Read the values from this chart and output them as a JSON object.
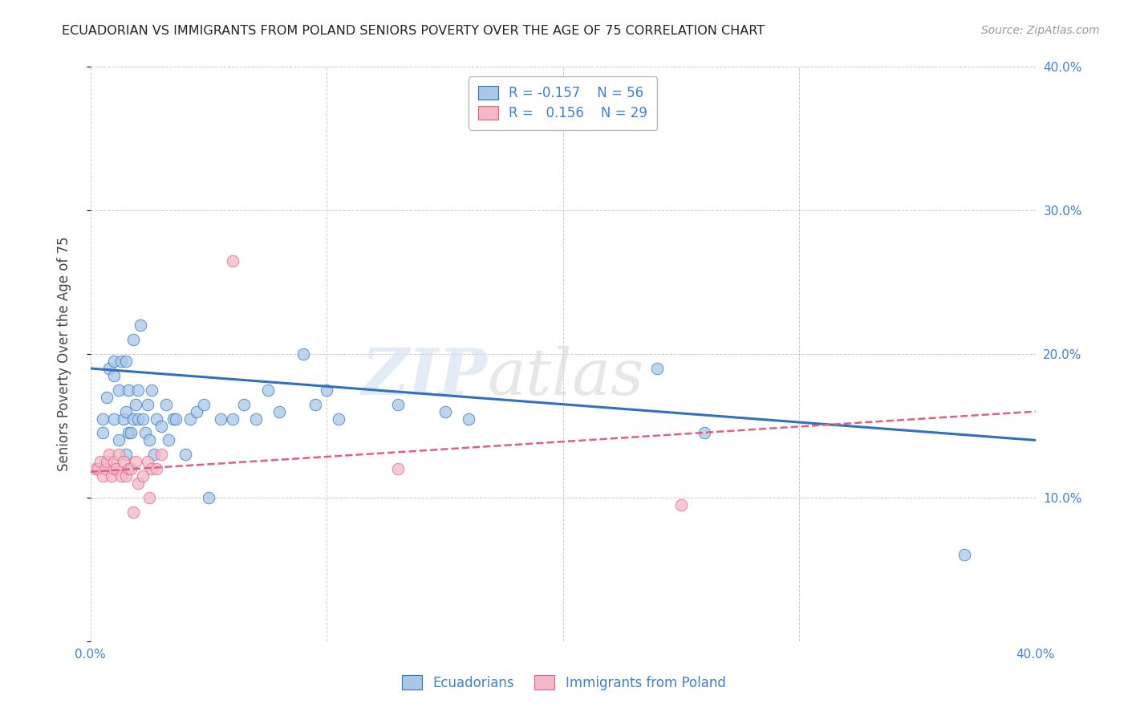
{
  "title": "ECUADORIAN VS IMMIGRANTS FROM POLAND SENIORS POVERTY OVER THE AGE OF 75 CORRELATION CHART",
  "source": "Source: ZipAtlas.com",
  "ylabel": "Seniors Poverty Over the Age of 75",
  "xlim": [
    0.0,
    0.4
  ],
  "ylim": [
    0.0,
    0.4
  ],
  "xticks": [
    0.0,
    0.1,
    0.2,
    0.3,
    0.4
  ],
  "yticks": [
    0.0,
    0.1,
    0.2,
    0.3,
    0.4
  ],
  "xticklabels": [
    "0.0%",
    "",
    "",
    "",
    "40.0%"
  ],
  "right_yticklabels": [
    "10.0%",
    "20.0%",
    "30.0%",
    "40.0%"
  ],
  "right_yticks": [
    0.1,
    0.2,
    0.3,
    0.4
  ],
  "blue_color": "#a8c8e8",
  "pink_color": "#f5b8c8",
  "blue_line_color": "#3070c0",
  "pink_line_color": "#e06080",
  "title_color": "#222222",
  "source_color": "#999999",
  "label_color": "#4080d0",
  "grid_color": "#cccccc",
  "legend_R_blue": "-0.157",
  "legend_N_blue": "56",
  "legend_R_pink": "0.156",
  "legend_N_pink": "29",
  "ecuadorians_x": [
    0.005,
    0.005,
    0.007,
    0.008,
    0.01,
    0.01,
    0.01,
    0.012,
    0.012,
    0.013,
    0.014,
    0.015,
    0.015,
    0.015,
    0.016,
    0.016,
    0.017,
    0.018,
    0.018,
    0.019,
    0.02,
    0.02,
    0.021,
    0.022,
    0.023,
    0.024,
    0.025,
    0.026,
    0.027,
    0.028,
    0.03,
    0.032,
    0.033,
    0.035,
    0.036,
    0.04,
    0.042,
    0.045,
    0.048,
    0.05,
    0.055,
    0.06,
    0.065,
    0.07,
    0.075,
    0.08,
    0.09,
    0.095,
    0.1,
    0.105,
    0.13,
    0.15,
    0.16,
    0.24,
    0.26,
    0.37
  ],
  "ecuadorians_y": [
    0.145,
    0.155,
    0.17,
    0.19,
    0.185,
    0.195,
    0.155,
    0.14,
    0.175,
    0.195,
    0.155,
    0.13,
    0.16,
    0.195,
    0.145,
    0.175,
    0.145,
    0.155,
    0.21,
    0.165,
    0.155,
    0.175,
    0.22,
    0.155,
    0.145,
    0.165,
    0.14,
    0.175,
    0.13,
    0.155,
    0.15,
    0.165,
    0.14,
    0.155,
    0.155,
    0.13,
    0.155,
    0.16,
    0.165,
    0.1,
    0.155,
    0.155,
    0.165,
    0.155,
    0.175,
    0.16,
    0.2,
    0.165,
    0.175,
    0.155,
    0.165,
    0.16,
    0.155,
    0.19,
    0.145,
    0.06
  ],
  "poland_x": [
    0.002,
    0.003,
    0.004,
    0.005,
    0.006,
    0.007,
    0.008,
    0.009,
    0.01,
    0.01,
    0.011,
    0.012,
    0.013,
    0.014,
    0.015,
    0.016,
    0.017,
    0.018,
    0.019,
    0.02,
    0.022,
    0.024,
    0.025,
    0.026,
    0.028,
    0.03,
    0.06,
    0.13,
    0.25
  ],
  "poland_y": [
    0.12,
    0.12,
    0.125,
    0.115,
    0.12,
    0.125,
    0.13,
    0.115,
    0.12,
    0.125,
    0.12,
    0.13,
    0.115,
    0.125,
    0.115,
    0.12,
    0.12,
    0.09,
    0.125,
    0.11,
    0.115,
    0.125,
    0.1,
    0.12,
    0.12,
    0.13,
    0.265,
    0.12,
    0.095
  ],
  "watermark_zip": "ZIP",
  "watermark_atlas": "atlas",
  "background_color": "#ffffff"
}
